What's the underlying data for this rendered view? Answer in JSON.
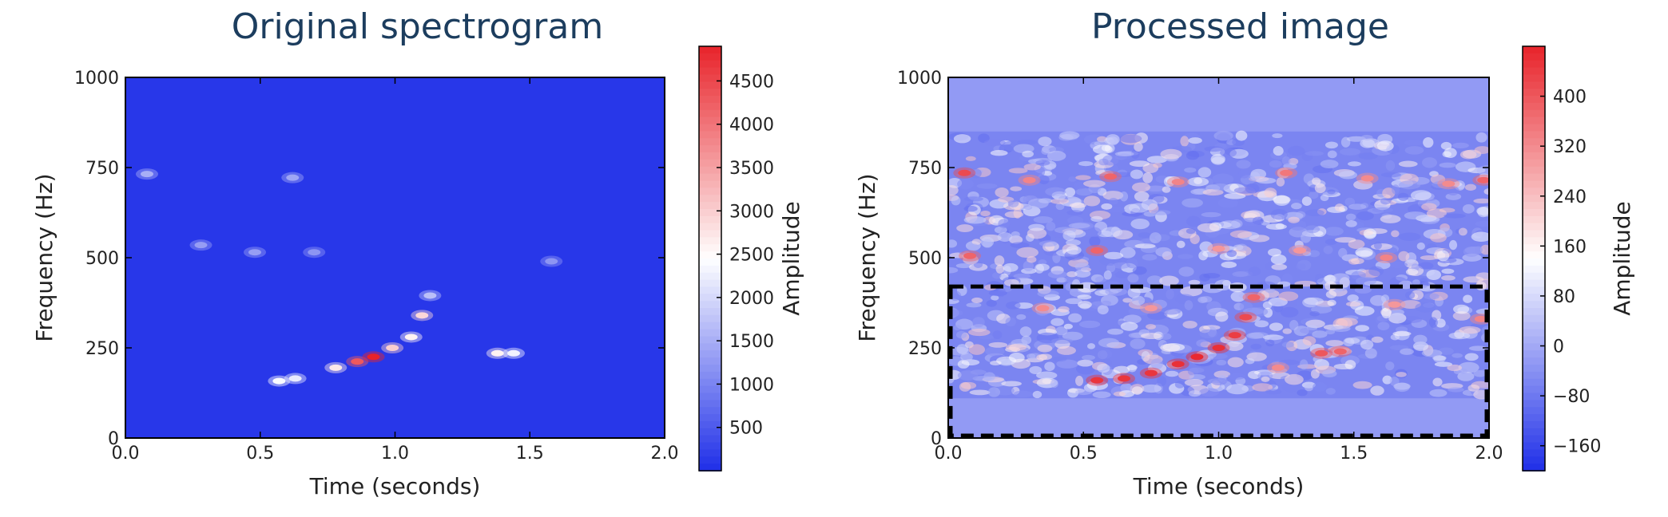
{
  "chart_data": [
    {
      "type": "heatmap",
      "title": "Original spectrogram",
      "xlabel": "Time (seconds)",
      "ylabel": "Frequency (Hz)",
      "xlim": [
        0.0,
        2.0
      ],
      "ylim": [
        0,
        1000
      ],
      "xticks": [
        "0.0",
        "0.5",
        "1.0",
        "1.5",
        "2.0"
      ],
      "yticks": [
        "0",
        "250",
        "500",
        "750",
        "1000"
      ],
      "colorbar": {
        "label": "Amplitude",
        "range": [
          0,
          4900
        ],
        "ticks": [
          "500",
          "1000",
          "1500",
          "2000",
          "2500",
          "3000",
          "3500",
          "4000",
          "4500"
        ],
        "colormap": [
          "#1f2fe8",
          "#ffffff",
          "#e8232a"
        ]
      },
      "background_value": 100,
      "hotspots": [
        {
          "t": 0.57,
          "f": 158,
          "value": 2400
        },
        {
          "t": 0.63,
          "f": 165,
          "value": 2200
        },
        {
          "t": 0.78,
          "f": 195,
          "value": 2700
        },
        {
          "t": 0.86,
          "f": 212,
          "value": 4300
        },
        {
          "t": 0.92,
          "f": 225,
          "value": 4900
        },
        {
          "t": 0.99,
          "f": 250,
          "value": 3000
        },
        {
          "t": 1.06,
          "f": 280,
          "value": 2600
        },
        {
          "t": 1.1,
          "f": 340,
          "value": 2900
        },
        {
          "t": 1.13,
          "f": 395,
          "value": 1700
        },
        {
          "t": 1.38,
          "f": 235,
          "value": 2600
        },
        {
          "t": 1.44,
          "f": 235,
          "value": 2300
        },
        {
          "t": 0.08,
          "f": 732,
          "value": 1500
        },
        {
          "t": 0.62,
          "f": 722,
          "value": 1400
        },
        {
          "t": 0.28,
          "f": 535,
          "value": 1300
        },
        {
          "t": 0.48,
          "f": 515,
          "value": 1300
        },
        {
          "t": 0.7,
          "f": 515,
          "value": 1200
        },
        {
          "t": 1.58,
          "f": 490,
          "value": 1200
        }
      ]
    },
    {
      "type": "heatmap",
      "title": "Processed image",
      "xlabel": "Time (seconds)",
      "ylabel": "Frequency (Hz)",
      "xlim": [
        0.0,
        2.0
      ],
      "ylim": [
        0,
        1000
      ],
      "xticks": [
        "0.0",
        "0.5",
        "1.0",
        "1.5",
        "2.0"
      ],
      "yticks": [
        "0",
        "250",
        "500",
        "750",
        "1000"
      ],
      "colorbar": {
        "label": "Amplitude",
        "range": [
          -200,
          480
        ],
        "ticks": [
          "400",
          "320",
          "240",
          "160",
          "80",
          "0",
          "−80",
          "−160"
        ],
        "colormap": [
          "#1f2fe8",
          "#ffffff",
          "#e8232a"
        ]
      },
      "background_value": -60,
      "annotation": {
        "type": "dashed-rectangle",
        "t": [
          0.0,
          2.0
        ],
        "f": [
          0,
          420
        ]
      },
      "hotspots": [
        {
          "t": 0.55,
          "f": 160,
          "value": 450
        },
        {
          "t": 0.65,
          "f": 165,
          "value": 450
        },
        {
          "t": 0.75,
          "f": 180,
          "value": 450
        },
        {
          "t": 0.85,
          "f": 205,
          "value": 460
        },
        {
          "t": 0.92,
          "f": 225,
          "value": 470
        },
        {
          "t": 1.0,
          "f": 250,
          "value": 460
        },
        {
          "t": 1.06,
          "f": 285,
          "value": 440
        },
        {
          "t": 1.1,
          "f": 335,
          "value": 420
        },
        {
          "t": 1.13,
          "f": 390,
          "value": 380
        },
        {
          "t": 1.38,
          "f": 235,
          "value": 400
        },
        {
          "t": 1.45,
          "f": 240,
          "value": 380
        },
        {
          "t": 1.22,
          "f": 195,
          "value": 320
        },
        {
          "t": 0.06,
          "f": 735,
          "value": 420
        },
        {
          "t": 0.3,
          "f": 715,
          "value": 330
        },
        {
          "t": 0.6,
          "f": 725,
          "value": 380
        },
        {
          "t": 0.85,
          "f": 710,
          "value": 330
        },
        {
          "t": 1.25,
          "f": 735,
          "value": 350
        },
        {
          "t": 1.55,
          "f": 720,
          "value": 320
        },
        {
          "t": 1.85,
          "f": 705,
          "value": 320
        },
        {
          "t": 1.98,
          "f": 715,
          "value": 380
        },
        {
          "t": 0.08,
          "f": 505,
          "value": 380
        },
        {
          "t": 0.55,
          "f": 520,
          "value": 380
        },
        {
          "t": 1.0,
          "f": 525,
          "value": 300
        },
        {
          "t": 1.3,
          "f": 520,
          "value": 300
        },
        {
          "t": 1.62,
          "f": 500,
          "value": 330
        },
        {
          "t": 0.35,
          "f": 360,
          "value": 320
        },
        {
          "t": 0.75,
          "f": 360,
          "value": 300
        },
        {
          "t": 1.65,
          "f": 370,
          "value": 300
        },
        {
          "t": 1.97,
          "f": 330,
          "value": 330
        }
      ]
    }
  ]
}
